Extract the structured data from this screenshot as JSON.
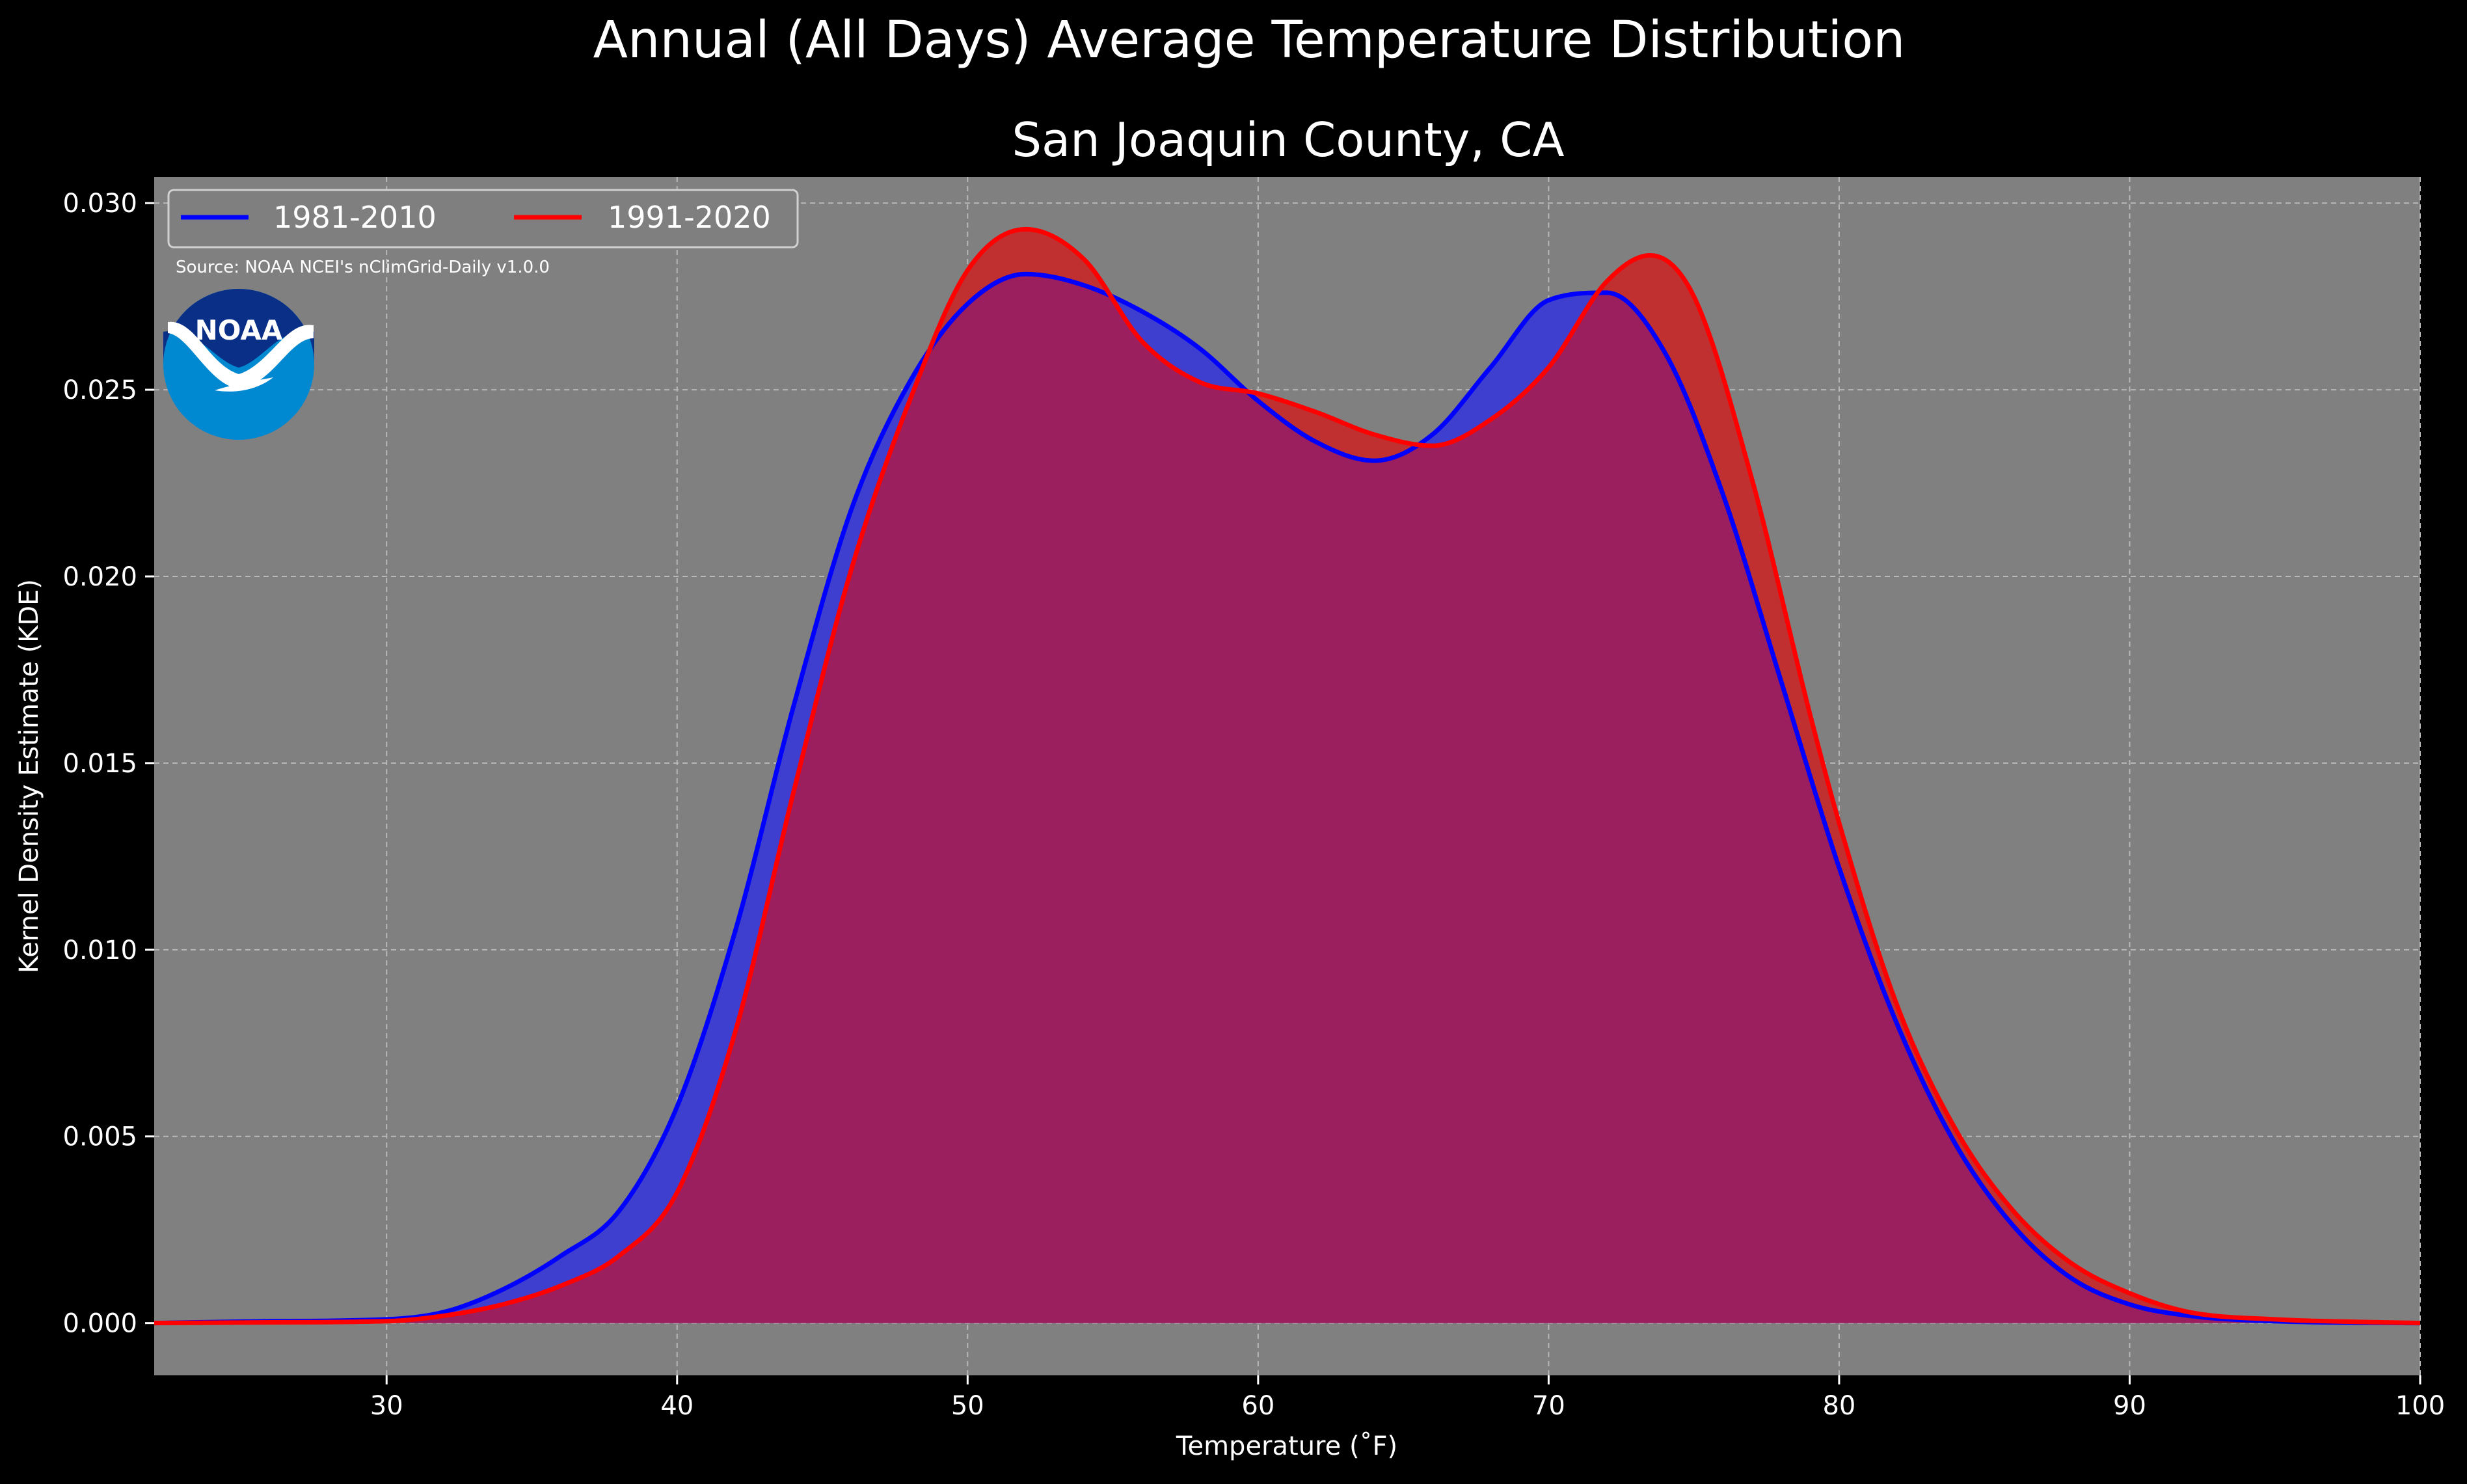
{
  "suptitle": "Annual (All Days) Average Temperature Distribution",
  "logo": {
    "text": "NOAA",
    "colors": {
      "dark": "#0a2f87",
      "light": "#0088d1",
      "white": "#ffffff"
    }
  },
  "source_note": "Source: NOAA NCEI's nClimGrid-Daily v1.0.0",
  "colors": {
    "background": "#000000",
    "plot_bg": "#808080",
    "grid": "#b8b8b8",
    "text": "#ffffff"
  },
  "chart_data": {
    "type": "area",
    "title": "San Joaquin County, CA",
    "xlabel": "Temperature (˚F)",
    "ylabel": "Kernel Density Estimate (KDE)",
    "xlim": [
      22,
      100
    ],
    "ylim": [
      -0.0014,
      0.0307
    ],
    "xticks": [
      30,
      40,
      50,
      60,
      70,
      80,
      90,
      100
    ],
    "yticks": [
      0.0,
      0.005,
      0.01,
      0.015,
      0.02,
      0.025,
      0.03
    ],
    "ytick_labels": [
      "0.000",
      "0.005",
      "0.010",
      "0.015",
      "0.020",
      "0.025",
      "0.030"
    ],
    "grid": true,
    "legend_position": "top-left",
    "series": [
      {
        "name": "1981-2010",
        "line_color": "#0000ff",
        "fill_color": "#3f3fcf",
        "x": [
          22,
          26,
          30,
          32,
          34,
          36,
          38,
          40,
          42,
          44,
          46,
          48,
          50,
          52,
          54,
          56,
          58,
          60,
          62,
          64,
          66,
          68,
          70,
          72,
          74,
          76,
          78,
          80,
          82,
          84,
          86,
          88,
          90,
          92,
          95,
          100
        ],
        "y": [
          0.0,
          5e-05,
          0.0001,
          0.0003,
          0.0009,
          0.0018,
          0.003,
          0.0058,
          0.0105,
          0.0165,
          0.0218,
          0.0252,
          0.0273,
          0.0281,
          0.0278,
          0.0271,
          0.0261,
          0.0247,
          0.0236,
          0.0231,
          0.0238,
          0.0256,
          0.0274,
          0.0276,
          0.026,
          0.0222,
          0.0172,
          0.0122,
          0.008,
          0.0048,
          0.0026,
          0.0012,
          0.0005,
          0.0002,
          5e-05,
          0.0
        ]
      },
      {
        "name": "1991-2020",
        "line_color": "#ff0000",
        "fill_color": "#c03030",
        "x": [
          22,
          26,
          30,
          32,
          34,
          36,
          38,
          40,
          42,
          44,
          46,
          48,
          50,
          52,
          54,
          56,
          58,
          60,
          62,
          64,
          66,
          68,
          70,
          72,
          73.5,
          75,
          77,
          79,
          80,
          82,
          84,
          86,
          88,
          90,
          92,
          95,
          100
        ],
        "y": [
          0.0,
          2e-05,
          5e-05,
          0.0002,
          0.0005,
          0.001,
          0.0018,
          0.0035,
          0.0078,
          0.0142,
          0.0202,
          0.0247,
          0.0282,
          0.0293,
          0.0285,
          0.0263,
          0.0252,
          0.0249,
          0.0244,
          0.0238,
          0.0235,
          0.0242,
          0.0256,
          0.0279,
          0.0286,
          0.0275,
          0.0226,
          0.0163,
          0.0134,
          0.0085,
          0.0052,
          0.003,
          0.0016,
          0.0008,
          0.0003,
          0.0001,
          0.0
        ]
      }
    ],
    "overlap_fill_color": "#9b1e5e"
  }
}
